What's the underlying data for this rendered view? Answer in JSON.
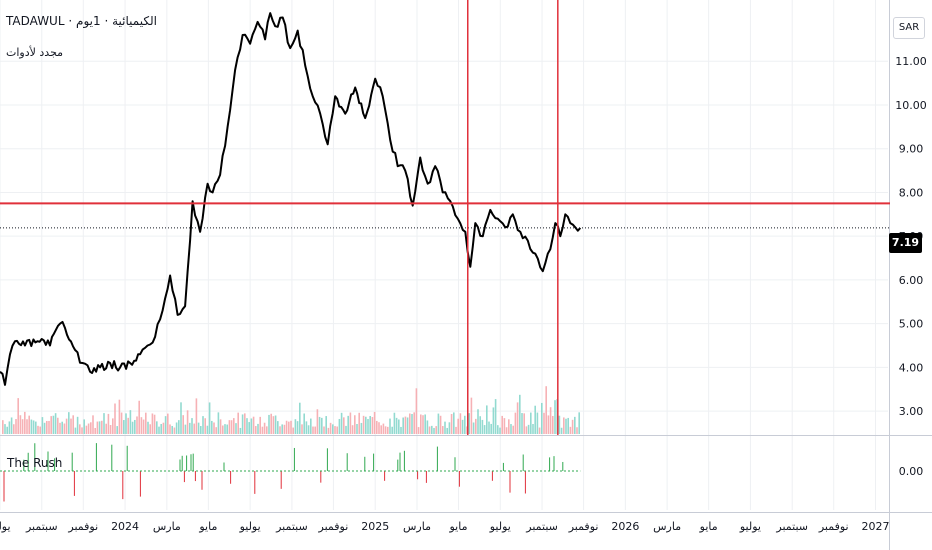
{
  "header": {
    "symbol": "TADAWUL",
    "separator": "·",
    "interval": "1يوم",
    "company": "الكيميائية",
    "subtitle": "مجدد لأدوات"
  },
  "currency": "SAR",
  "last_price": "7.19",
  "indicator": {
    "name": "The Rush"
  },
  "colors": {
    "price_line": "#000000",
    "horizontal_level": "#e0303a",
    "vertical_marker": "#e0303a",
    "volume_up": "#7fd3c8",
    "volume_down": "#f4a3a8",
    "rush_up": "#2fa84f",
    "rush_down": "#e0303a",
    "grid": "#eef0f3"
  },
  "chart_data": {
    "type": "line",
    "title": "TADAWUL · الكيميائية · 1يوم",
    "x_axis_labels": [
      "يوليو",
      "سبتمبر",
      "نوفمبر",
      "2024",
      "مارس",
      "مايو",
      "يوليو",
      "سبتمبر",
      "نوفمبر",
      "2025",
      "مارس",
      "مايو",
      "يوليو",
      "سبتمبر",
      "نوفمبر",
      "2026",
      "مارس",
      "مايو",
      "يوليو",
      "سبتمبر",
      "نوفمبر",
      "2027"
    ],
    "x_axis_times": [
      2023.5,
      2023.667,
      2023.833,
      2024.0,
      2024.167,
      2024.333,
      2024.5,
      2024.667,
      2024.833,
      2025.0,
      2025.167,
      2025.333,
      2025.5,
      2025.667,
      2025.833,
      2026.0,
      2026.167,
      2026.333,
      2026.5,
      2026.667,
      2026.833,
      2027.0
    ],
    "y_ticks": [
      "3.00",
      "4.00",
      "5.00",
      "6.00",
      "7.00",
      "8.00",
      "9.00",
      "10.00",
      "11.00"
    ],
    "y_tick_values": [
      3,
      4,
      5,
      6,
      7,
      8,
      9,
      10,
      11
    ],
    "ylim": [
      2.5,
      12.4
    ],
    "xlim": [
      2023.5,
      2027.05
    ],
    "x": [
      2023.5,
      2023.52,
      2023.54,
      2023.56,
      2023.6,
      2023.65,
      2023.7,
      2023.74,
      2023.76,
      2023.8,
      2023.83,
      2023.86,
      2023.9,
      2023.94,
      2023.98,
      2024.02,
      2024.06,
      2024.09,
      2024.12,
      2024.15,
      2024.18,
      2024.21,
      2024.24,
      2024.27,
      2024.3,
      2024.33,
      2024.35,
      2024.38,
      2024.41,
      2024.44,
      2024.47,
      2024.5,
      2024.53,
      2024.56,
      2024.58,
      2024.6,
      2024.63,
      2024.66,
      2024.69,
      2024.72,
      2024.75,
      2024.78,
      2024.81,
      2024.84,
      2024.88,
      2024.92,
      2024.96,
      2025.0,
      2025.03,
      2025.06,
      2025.09,
      2025.12,
      2025.15,
      2025.18,
      2025.21,
      2025.24,
      2025.27,
      2025.3,
      2025.33,
      2025.36,
      2025.38,
      2025.4,
      2025.43,
      2025.46,
      2025.49,
      2025.52,
      2025.55,
      2025.58,
      2025.61,
      2025.64,
      2025.67,
      2025.7,
      2025.72,
      2025.74,
      2025.76,
      2025.78,
      2025.8,
      2025.82
    ],
    "y": [
      3.9,
      3.6,
      4.3,
      4.6,
      4.5,
      4.6,
      4.5,
      5.0,
      4.9,
      4.4,
      4.1,
      3.9,
      4.0,
      4.1,
      4.0,
      4.1,
      4.3,
      4.5,
      4.7,
      5.3,
      6.1,
      5.2,
      5.4,
      7.8,
      7.1,
      8.2,
      8.0,
      8.4,
      9.5,
      10.8,
      11.6,
      11.4,
      11.9,
      11.5,
      12.1,
      11.8,
      12.0,
      11.3,
      11.7,
      10.9,
      10.2,
      9.8,
      9.1,
      10.2,
      9.8,
      10.4,
      9.7,
      10.6,
      10.2,
      9.2,
      8.6,
      8.5,
      7.7,
      8.8,
      8.2,
      8.6,
      8.0,
      7.8,
      7.4,
      7.1,
      6.3,
      7.3,
      7.0,
      7.6,
      7.4,
      7.2,
      7.5,
      7.1,
      6.9,
      6.6,
      6.2,
      6.7,
      7.3,
      7.0,
      7.5,
      7.3,
      7.2,
      7.19
    ],
    "horizontal_level": 7.75,
    "vertical_markers": [
      2025.37,
      2025.73
    ],
    "last_value": 7.19,
    "indicator": {
      "name": "The Rush",
      "y_ticks": [
        "0.00"
      ],
      "zero": 0
    }
  }
}
